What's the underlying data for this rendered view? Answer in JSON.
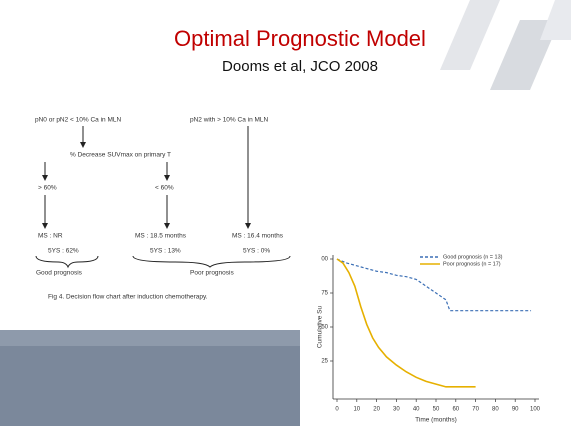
{
  "slide": {
    "title": "Optimal Prognostic Model",
    "subtitle": "Dooms et al, JCO 2008"
  },
  "flowchart": {
    "nodes": [
      {
        "label": "pN0 or pN2 < 10% Ca in MLN"
      },
      {
        "label": "pN2 with > 10% Ca in MLN"
      },
      {
        "label": "% Decrease SUVmax on primary T"
      },
      {
        "label": "> 60%"
      },
      {
        "label": "< 60%"
      },
      {
        "label": "MS : NR"
      },
      {
        "label": "MS : 18.5 months"
      },
      {
        "label": "MS : 16.4 months"
      },
      {
        "label": "5YS : 62%"
      },
      {
        "label": "5YS : 13%"
      },
      {
        "label": "5YS : 0%"
      }
    ],
    "groups": [
      "Good prognosis",
      "Poor prognosis"
    ],
    "caption": "Fig 4. Decision flow chart after induction chemotherapy."
  },
  "chart_data": {
    "type": "line",
    "ylabel": "Cumulative Su",
    "xlabel": "Time (months)",
    "xlim": [
      0,
      100
    ],
    "ylim": [
      0,
      100
    ],
    "xticks": [
      0,
      10,
      20,
      30,
      40,
      50,
      60,
      70,
      80,
      90,
      100
    ],
    "yticks": [
      25,
      50,
      75,
      {
        "value": 100,
        "label": "00"
      }
    ],
    "series": [
      {
        "name": "Good prognosis (n = 13)",
        "color": "#3b6fb5",
        "dashed": true,
        "x": [
          0,
          5,
          10,
          15,
          20,
          25,
          30,
          35,
          40,
          45,
          50,
          55,
          57,
          60,
          70,
          80,
          90,
          98
        ],
        "values": [
          100,
          97,
          95,
          93,
          91,
          90,
          88,
          87,
          85,
          80,
          75,
          70,
          62,
          62,
          62,
          62,
          62,
          62
        ]
      },
      {
        "name": "Poor prognosis (n = 17)",
        "color": "#e6b000",
        "dashed": false,
        "x": [
          0,
          3,
          6,
          9,
          12,
          15,
          18,
          21,
          25,
          30,
          35,
          40,
          45,
          50,
          55,
          60,
          70
        ],
        "values": [
          100,
          97,
          90,
          80,
          65,
          52,
          42,
          35,
          28,
          22,
          17,
          13,
          10,
          8,
          6,
          6,
          6
        ]
      }
    ]
  }
}
